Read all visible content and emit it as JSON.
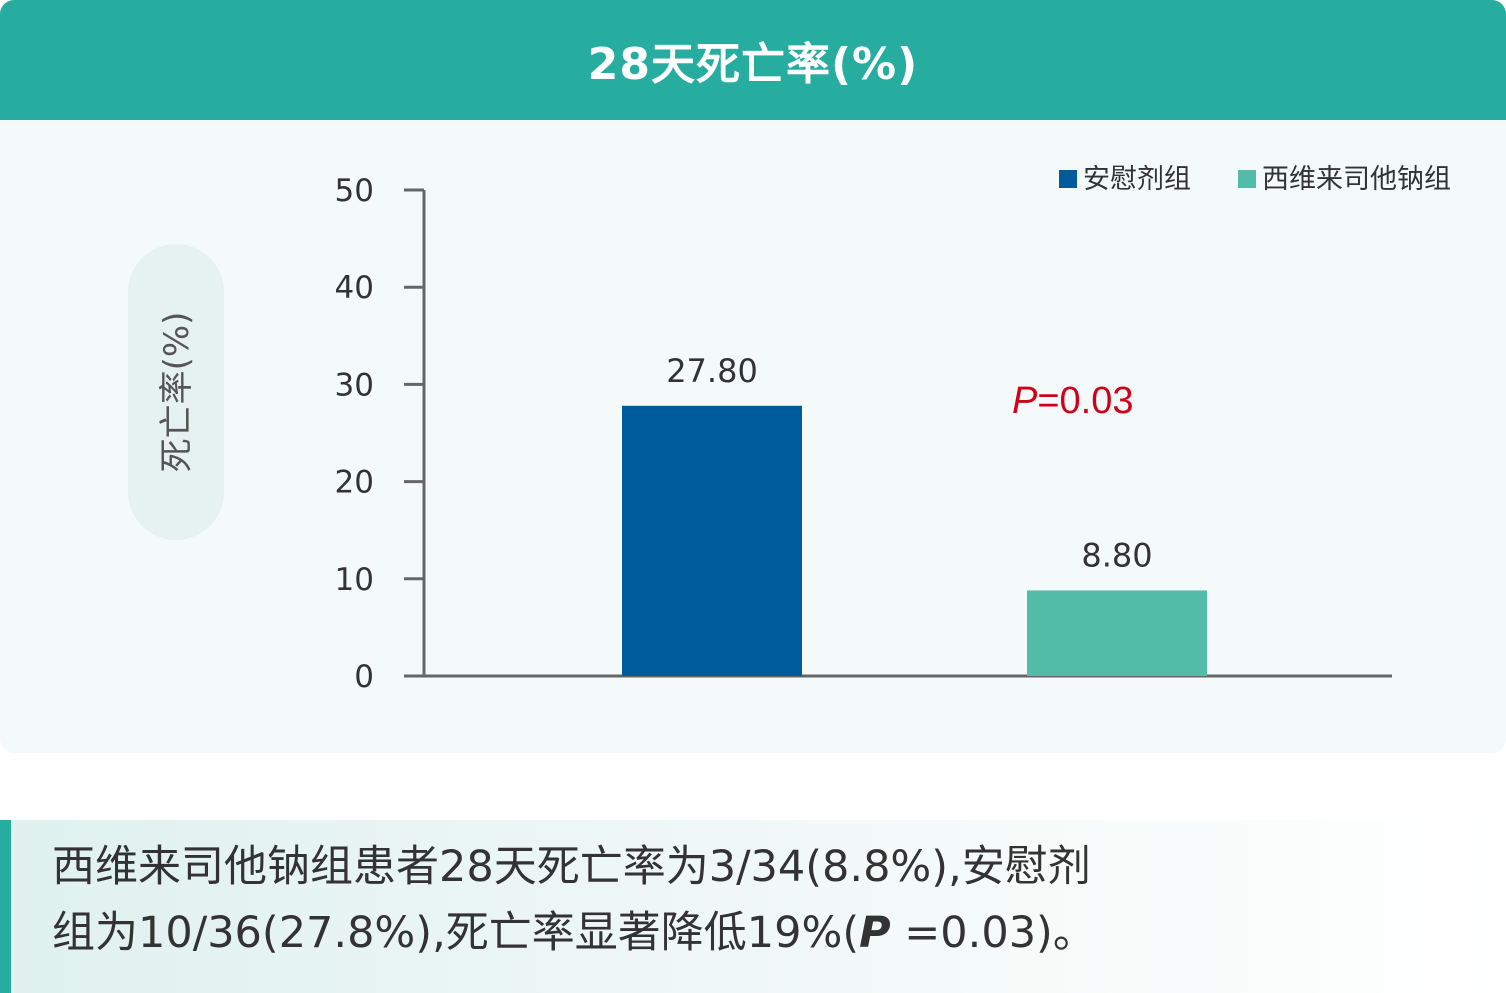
{
  "header": {
    "title": "28天死亡率(%)"
  },
  "chart_data": {
    "type": "bar",
    "title": "28天死亡率(%)",
    "ylabel": "死亡率(%)",
    "ylim": [
      0,
      50
    ],
    "yticks": [
      "0",
      "10",
      "20",
      "30",
      "40",
      "50"
    ],
    "categories": [
      "安慰剂组",
      "西维来司他钠组"
    ],
    "values": [
      27.8,
      8.8
    ],
    "value_labels": [
      "27.80",
      "8.80"
    ],
    "colors": [
      "#005b9c",
      "#52bca8"
    ],
    "legend": {
      "placement": "top-right",
      "entries": [
        {
          "label": "安慰剂组",
          "color": "#005b9c"
        },
        {
          "label": "西维来司他钠组",
          "color": "#52bca8"
        }
      ]
    },
    "annotation": {
      "prefix": "P",
      "text": "=0.03",
      "color": "#d0021b"
    },
    "grid": false
  },
  "caption": {
    "line1": "西维来司他钠组患者28天死亡率为3/34(8.8%),安慰剂",
    "line2_pre": "组为10/36(27.8%),死亡率显著降低19%(",
    "line2_p": "P",
    "line2_post": " =0.03)。"
  }
}
